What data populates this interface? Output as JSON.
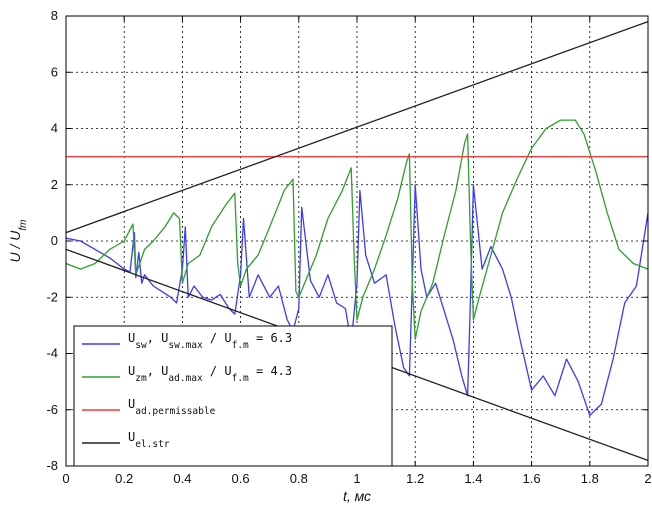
{
  "chart_data": {
    "type": "line",
    "title": "",
    "xlabel": "t, мс",
    "ylabel": "U / U_fm",
    "xlim": [
      0,
      2
    ],
    "ylim": [
      -8,
      8
    ],
    "xticks": [
      "0",
      "0.2",
      "0.4",
      "0.6",
      "0.8",
      "1",
      "1.2",
      "1.4",
      "1.6",
      "1.8",
      "2"
    ],
    "yticks": [
      "8",
      "6",
      "4",
      "2",
      "0",
      "-2",
      "-4",
      "-6",
      "-8"
    ],
    "grid": true,
    "legend_position": "bottom-left",
    "series": [
      {
        "name": "U_sw, U_sw.max / U_f.m = 6.3",
        "legend": {
          "s1": "U",
          "b1": "sw",
          "s2": ", U",
          "b2": "sw.max",
          "s3": " / U",
          "b3": "f.m",
          "s4": " = 6.3"
        },
        "color": "#3a3aff",
        "x": [
          0,
          0.05,
          0.1,
          0.15,
          0.2,
          0.22,
          0.235,
          0.24,
          0.25,
          0.26,
          0.27,
          0.3,
          0.33,
          0.36,
          0.38,
          0.4,
          0.41,
          0.42,
          0.44,
          0.47,
          0.5,
          0.53,
          0.56,
          0.58,
          0.6,
          0.61,
          0.63,
          0.66,
          0.7,
          0.73,
          0.76,
          0.78,
          0.8,
          0.81,
          0.84,
          0.87,
          0.9,
          0.93,
          0.96,
          0.98,
          1.0,
          1.01,
          1.03,
          1.06,
          1.1,
          1.13,
          1.16,
          1.18,
          1.19,
          1.2,
          1.22,
          1.24,
          1.27,
          1.3,
          1.33,
          1.36,
          1.38,
          1.39,
          1.4,
          1.41,
          1.43,
          1.46,
          1.5,
          1.53,
          1.56,
          1.6,
          1.64,
          1.68,
          1.72,
          1.76,
          1.8,
          1.84,
          1.88,
          1.92,
          1.96,
          2.0
        ],
        "y": [
          0.1,
          0.0,
          -0.3,
          -0.6,
          -1.0,
          -1.1,
          0.3,
          -1.3,
          -0.4,
          -1.5,
          -1.2,
          -1.6,
          -1.8,
          -2.0,
          -2.2,
          -1.0,
          0.5,
          -2.0,
          -1.6,
          -2.0,
          -2.1,
          -1.9,
          -2.4,
          -2.6,
          -1.2,
          0.8,
          -2.0,
          -1.2,
          -2.0,
          -1.6,
          -2.8,
          -3.2,
          -2.4,
          1.2,
          -1.4,
          -2.0,
          -1.2,
          -2.2,
          -2.4,
          -3.6,
          -1.5,
          1.8,
          -0.5,
          -1.5,
          -1.2,
          -3.0,
          -4.5,
          -4.8,
          -1.5,
          2.0,
          -1.0,
          -2.0,
          -1.5,
          -2.5,
          -3.5,
          -4.8,
          -5.5,
          -2.0,
          2.0,
          1.0,
          -1.0,
          -0.2,
          -1.0,
          -2.0,
          -3.5,
          -5.3,
          -4.8,
          -5.5,
          -4.2,
          -5.0,
          -6.2,
          -5.8,
          -4.2,
          -2.2,
          -1.6,
          1.0
        ]
      },
      {
        "name": "U_zm, U_ad.max / U_f.m = 4.3",
        "legend": {
          "s1": "U",
          "b1": "zm",
          "s2": ", U",
          "b2": "ad.max",
          "s3": " / U",
          "b3": "f.m",
          "s4": " = 4.3"
        },
        "color": "#2ca02c",
        "x": [
          0,
          0.05,
          0.1,
          0.15,
          0.2,
          0.23,
          0.24,
          0.27,
          0.3,
          0.34,
          0.37,
          0.39,
          0.4,
          0.42,
          0.46,
          0.5,
          0.55,
          0.58,
          0.59,
          0.6,
          0.62,
          0.66,
          0.7,
          0.75,
          0.78,
          0.79,
          0.8,
          0.82,
          0.86,
          0.9,
          0.95,
          0.98,
          0.99,
          1.0,
          1.02,
          1.06,
          1.1,
          1.14,
          1.17,
          1.18,
          1.19,
          1.2,
          1.22,
          1.26,
          1.3,
          1.34,
          1.37,
          1.38,
          1.39,
          1.4,
          1.42,
          1.46,
          1.5,
          1.55,
          1.6,
          1.65,
          1.7,
          1.75,
          1.78,
          1.82,
          1.86,
          1.9,
          1.95,
          2.0
        ],
        "y": [
          -0.8,
          -1.0,
          -0.8,
          -0.3,
          0.0,
          0.6,
          -1.2,
          -0.3,
          0.0,
          0.5,
          1.0,
          0.8,
          -1.5,
          -0.8,
          -0.5,
          0.5,
          1.3,
          1.7,
          -0.8,
          -1.6,
          -1.0,
          -0.5,
          0.5,
          1.8,
          2.2,
          -1.8,
          -2.0,
          -1.5,
          -0.5,
          0.8,
          1.8,
          2.6,
          -0.5,
          -2.8,
          -2.0,
          -1.0,
          0.2,
          1.5,
          2.8,
          3.1,
          -1.5,
          -3.5,
          -2.5,
          -1.5,
          0.2,
          1.8,
          3.5,
          3.8,
          0.0,
          -2.8,
          -2.0,
          -0.5,
          1.0,
          2.2,
          3.3,
          4.0,
          4.3,
          4.3,
          3.8,
          2.5,
          1.0,
          -0.3,
          -0.8,
          -1.0
        ]
      },
      {
        "name": "U_ad.permissable",
        "legend": {
          "s1": "U",
          "b1": "ad.permissable"
        },
        "color": "#ff3333",
        "x": [
          0,
          2
        ],
        "y": [
          3.0,
          3.0
        ]
      },
      {
        "name": "U_el.str upper",
        "legend": {
          "s1": "U",
          "b1": "el.str"
        },
        "color": "#222222",
        "x": [
          0,
          2
        ],
        "y": [
          0.3,
          7.8
        ]
      },
      {
        "name": "U_el.str lower",
        "color": "#222222",
        "x": [
          0,
          2
        ],
        "y": [
          -0.3,
          -7.8
        ]
      }
    ]
  }
}
